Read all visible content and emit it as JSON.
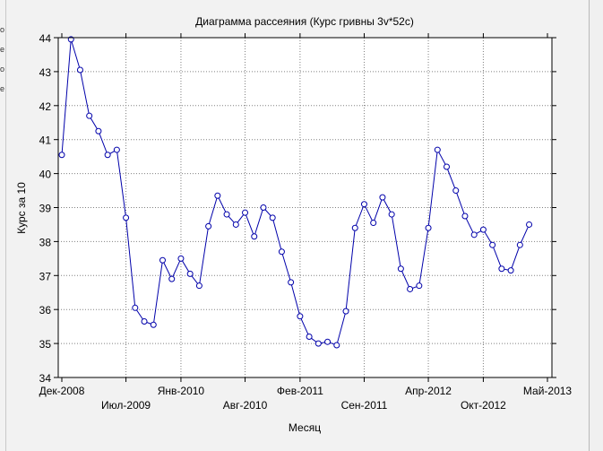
{
  "colors": {
    "series": "#0000aa",
    "grid": "#808080",
    "background": "#ffffff",
    "frame": "#f2f2f2"
  },
  "left_edge_glyphs": [
    "o",
    "e",
    "o",
    "e"
  ],
  "chart_data": {
    "type": "scatter",
    "title": "Диаграмма рассеяния (Курс гривны 3v*52c)",
    "xlabel": "Месяц",
    "ylabel": "Курс за 10",
    "ylim": [
      34,
      44
    ],
    "yticks": [
      34,
      35,
      36,
      37,
      38,
      39,
      40,
      41,
      42,
      43,
      44
    ],
    "xticks": [
      {
        "label": "Дек-2008",
        "index": 0
      },
      {
        "label": "Июл-2009",
        "index": 7
      },
      {
        "label": "Янв-2010",
        "index": 13
      },
      {
        "label": "Авг-2010",
        "index": 20
      },
      {
        "label": "Фев-2011",
        "index": 26
      },
      {
        "label": "Сен-2011",
        "index": 33
      },
      {
        "label": "Апр-2012",
        "index": 40
      },
      {
        "label": "Окт-2012",
        "index": 46
      },
      {
        "label": "Май-2013",
        "index": 53
      }
    ],
    "grid": true,
    "series": [
      {
        "values": [
          40.55,
          43.95,
          43.05,
          41.7,
          41.25,
          40.55,
          40.7,
          38.7,
          36.05,
          35.65,
          35.55,
          37.45,
          36.9,
          37.5,
          37.05,
          36.7,
          38.45,
          39.35,
          38.8,
          38.5,
          38.85,
          38.15,
          39.0,
          38.7,
          37.7,
          36.8,
          35.8,
          35.2,
          35.0,
          35.05,
          34.95,
          35.95,
          38.4,
          39.1,
          38.55,
          39.3,
          38.8,
          37.2,
          36.6,
          36.7,
          38.4,
          40.7,
          40.2,
          39.5,
          38.75,
          38.2,
          38.35,
          37.9,
          37.2,
          37.15,
          37.9,
          38.5
        ]
      }
    ]
  }
}
